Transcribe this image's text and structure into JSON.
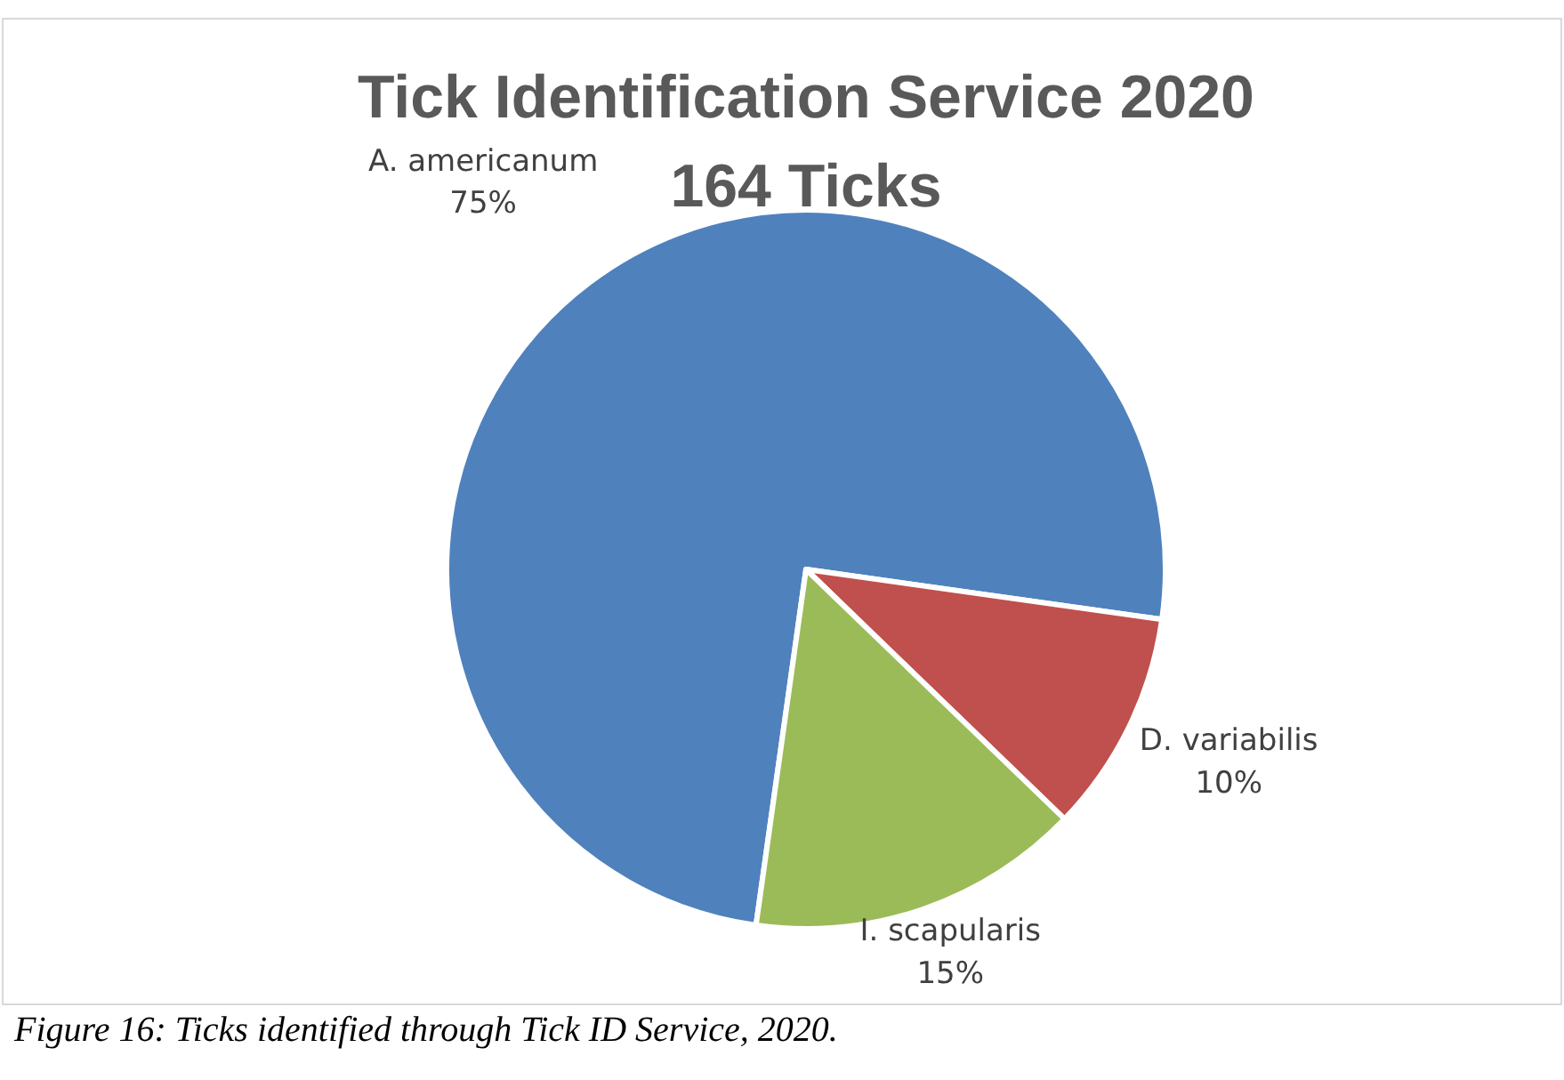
{
  "chart_data": {
    "type": "pie",
    "title": "Tick Identification Service 2020",
    "subtitle": "164 Ticks",
    "categories": [
      "A. americanum",
      "D. variabilis",
      "I. scapularis"
    ],
    "values": [
      75,
      10,
      15
    ],
    "colors": [
      "#4f81bd",
      "#c0504d",
      "#9bbb59"
    ],
    "value_labels": [
      "75%",
      "10%",
      "15%"
    ],
    "annotations": [
      "Figure 16: Ticks identified through Tick ID Service, 2020."
    ]
  }
}
